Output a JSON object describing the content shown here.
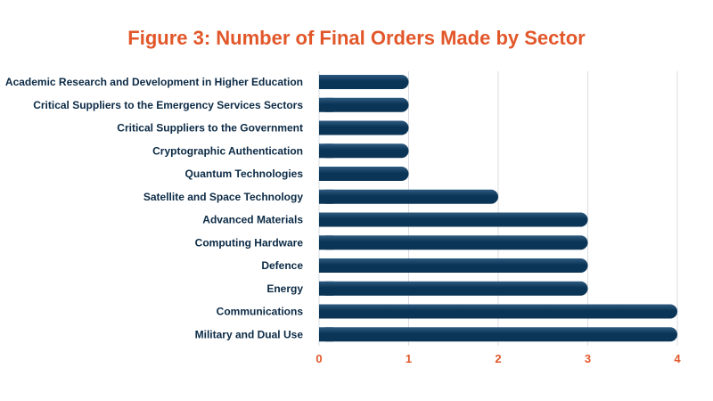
{
  "colors": {
    "title": "#E2572A",
    "bar": "#0B3556",
    "bar_highlight": "#2E5B80",
    "label": "#0B2A45",
    "tick": "#E2572A",
    "grid": "#D9DDE2"
  },
  "chart_data": {
    "type": "bar",
    "orientation": "horizontal",
    "title": "Figure 3: Number of Final Orders Made by Sector",
    "xlabel": "",
    "ylabel": "",
    "categories": [
      "Academic Research and Development in Higher Education",
      "Critical Suppliers to the Emergency Services Sectors",
      "Critical Suppliers to the Government",
      "Cryptographic Authentication",
      "Quantum Technologies",
      "Satellite and Space Technology",
      "Advanced Materials",
      "Computing Hardware",
      "Defence",
      "Energy",
      "Communications",
      "Military and Dual Use"
    ],
    "values": [
      1,
      1,
      1,
      1,
      1,
      2,
      3,
      3,
      3,
      3,
      4,
      4
    ],
    "xlim": [
      0,
      4
    ],
    "xticks": [
      "0",
      "1",
      "2",
      "3",
      "4"
    ],
    "grid": true,
    "legend": "none"
  }
}
